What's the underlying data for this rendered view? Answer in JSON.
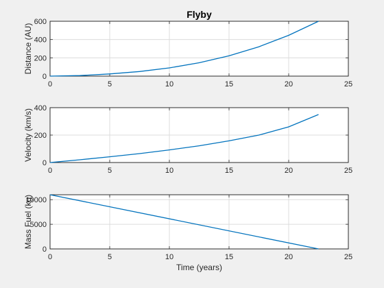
{
  "chart_data": [
    {
      "type": "line",
      "title": "Flyby",
      "xlabel": "",
      "ylabel": "Distance (AU)",
      "xlim": [
        0,
        25
      ],
      "ylim": [
        0,
        600
      ],
      "xticks": [
        "0",
        "5",
        "10",
        "15",
        "20",
        "25"
      ],
      "yticks": [
        "0",
        "200",
        "400",
        "600"
      ],
      "grid": true,
      "series": [
        {
          "color": "#0072bd",
          "x": [
            0,
            2.5,
            5,
            7.5,
            10,
            12.5,
            15,
            17.5,
            20,
            22.5
          ],
          "y": [
            0,
            6,
            24,
            50,
            90,
            146,
            222,
            321,
            446,
            600
          ]
        }
      ]
    },
    {
      "type": "line",
      "title": "",
      "xlabel": "",
      "ylabel": "Velocity (km/s)",
      "xlim": [
        0,
        25
      ],
      "ylim": [
        0,
        400
      ],
      "xticks": [
        "0",
        "5",
        "10",
        "15",
        "20",
        "25"
      ],
      "yticks": [
        "0",
        "200",
        "400"
      ],
      "grid": true,
      "series": [
        {
          "color": "#0072bd",
          "x": [
            0,
            2.5,
            5,
            7.5,
            10,
            12.5,
            15,
            17.5,
            20,
            22.5
          ],
          "y": [
            0,
            20,
            42,
            65,
            92,
            122,
            158,
            200,
            260,
            350
          ]
        }
      ]
    },
    {
      "type": "line",
      "title": "",
      "xlabel": "Time (years)",
      "ylabel": "Mass Fuel (kg)",
      "xlim": [
        0,
        25
      ],
      "ylim": [
        0,
        11000
      ],
      "xticks": [
        "0",
        "5",
        "10",
        "15",
        "20",
        "25"
      ],
      "yticks": [
        "0",
        "5000",
        "10000"
      ],
      "grid": true,
      "series": [
        {
          "color": "#0072bd",
          "x": [
            0,
            22.5
          ],
          "y": [
            11000,
            0
          ]
        }
      ]
    }
  ]
}
